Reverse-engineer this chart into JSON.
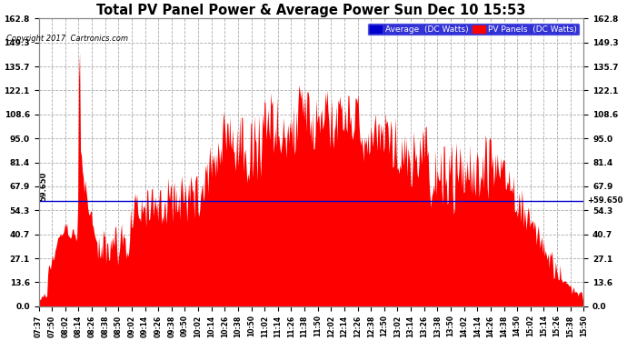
{
  "title": "Total PV Panel Power & Average Power Sun Dec 10 15:53",
  "copyright": "Copyright 2017  Cartronics.com",
  "legend_average": "Average  (DC Watts)",
  "legend_pv": "PV Panels  (DC Watts)",
  "average_value": 59.65,
  "ymin": 0.0,
  "ymax": 162.8,
  "yticks": [
    0.0,
    13.6,
    27.1,
    40.7,
    54.3,
    67.9,
    81.4,
    95.0,
    108.6,
    122.1,
    135.7,
    149.3,
    162.8
  ],
  "area_color": "#ff0000",
  "avg_line_color": "#0000cc",
  "grid_color": "#aaaaaa",
  "fig_bg": "#ffffff",
  "plot_bg": "#ffffff",
  "xtick_labels": [
    "07:37",
    "07:50",
    "08:02",
    "08:14",
    "08:26",
    "08:38",
    "08:50",
    "09:02",
    "09:14",
    "09:26",
    "09:38",
    "09:50",
    "10:02",
    "10:14",
    "10:26",
    "10:38",
    "10:50",
    "11:02",
    "11:14",
    "11:26",
    "11:38",
    "11:50",
    "12:02",
    "12:14",
    "12:26",
    "12:38",
    "12:50",
    "13:02",
    "13:14",
    "13:26",
    "13:38",
    "13:50",
    "14:02",
    "14:14",
    "14:26",
    "14:38",
    "14:50",
    "15:02",
    "15:14",
    "15:26",
    "15:38",
    "15:50"
  ]
}
